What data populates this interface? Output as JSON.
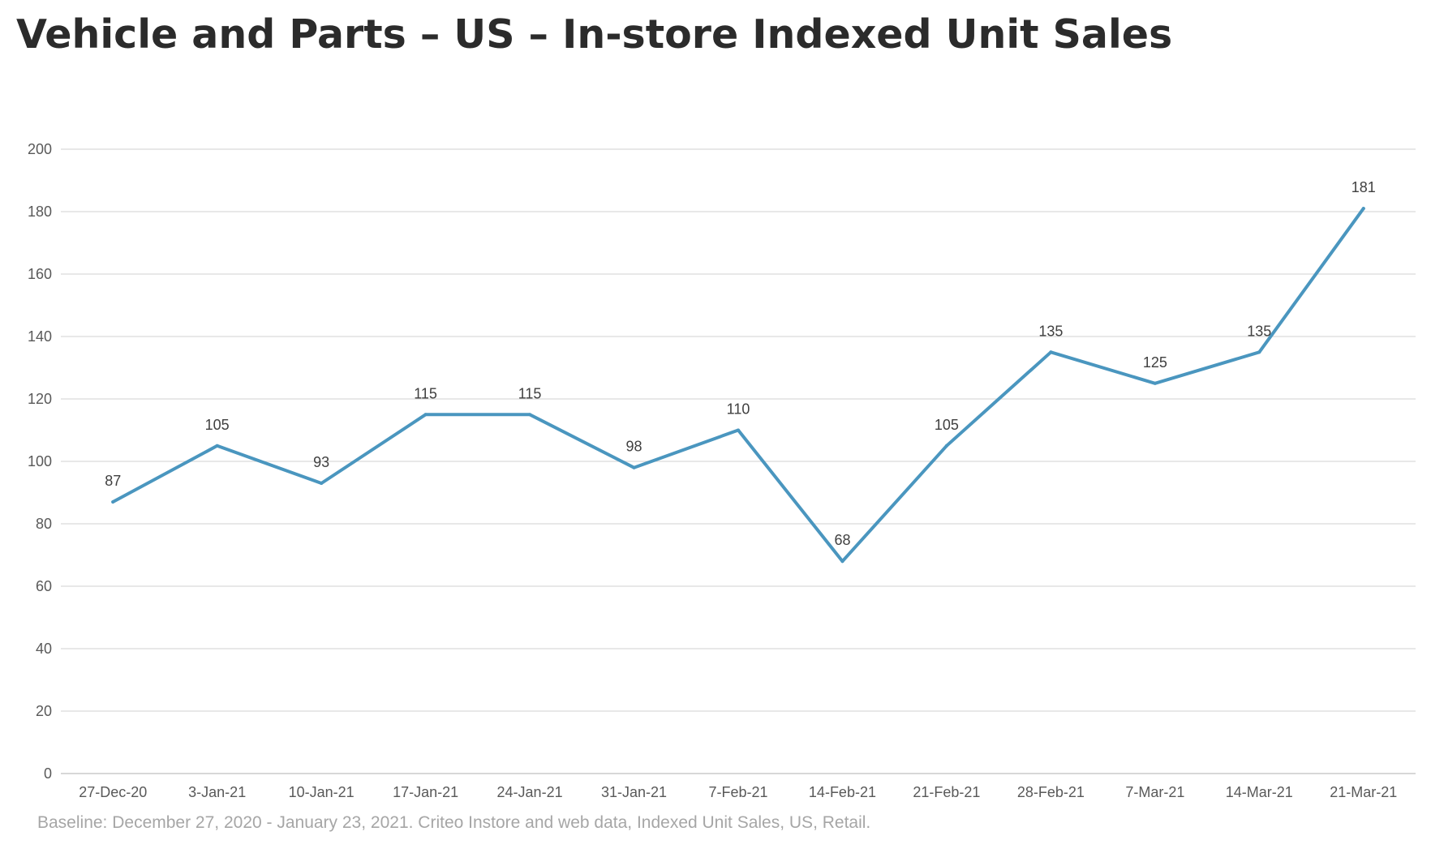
{
  "title": "Vehicle and Parts – US – In-store Indexed Unit Sales",
  "footnote": "Baseline: December 27, 2020 - January 23, 2021. Criteo Instore and web data, Indexed Unit Sales, US, Retail.",
  "chart_data": {
    "type": "line",
    "categories": [
      "27-Dec-20",
      "3-Jan-21",
      "10-Jan-21",
      "17-Jan-21",
      "24-Jan-21",
      "31-Jan-21",
      "7-Feb-21",
      "14-Feb-21",
      "21-Feb-21",
      "28-Feb-21",
      "7-Mar-21",
      "14-Mar-21",
      "21-Mar-21"
    ],
    "series": [
      {
        "values": [
          87,
          105,
          93,
          115,
          115,
          98,
          110,
          68,
          105,
          135,
          125,
          135,
          181
        ],
        "data_labels": [
          "87",
          "105",
          "93",
          "115",
          "115",
          "98",
          "110",
          "68",
          "105",
          "135",
          "125",
          "135",
          "181"
        ],
        "color": "#4a96bf"
      }
    ],
    "ylim": [
      0,
      200
    ],
    "yticks": [
      0,
      20,
      40,
      60,
      80,
      100,
      120,
      140,
      160,
      180,
      200
    ],
    "grid": true,
    "legend": "none"
  }
}
